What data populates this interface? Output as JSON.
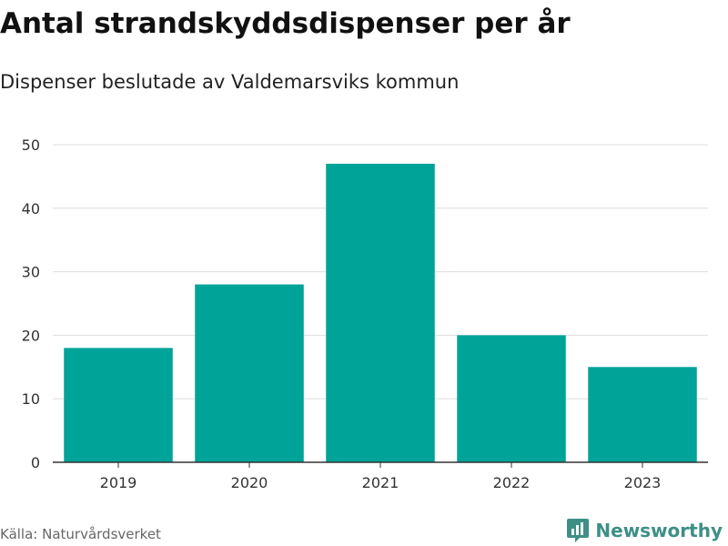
{
  "chart_data": {
    "type": "bar",
    "title": "Antal strandskyddsdispenser per år",
    "subtitle": "Dispenser beslutade av Valdemarsviks kommun",
    "categories": [
      "2019",
      "2020",
      "2021",
      "2022",
      "2023"
    ],
    "values": [
      18,
      28,
      47,
      20,
      15
    ],
    "ylim": [
      0,
      50
    ],
    "yticks": [
      0,
      10,
      20,
      30,
      40,
      50
    ],
    "grid": true,
    "bar_color": "#00a398"
  },
  "footer": {
    "source": "Källa: Naturvårdsverket",
    "brand": "Newsworthy"
  },
  "colors": {
    "brand": "#3d8f86",
    "gridline": "#dddddd"
  },
  "icons": {
    "brand": "newsworthy-logo-icon"
  }
}
